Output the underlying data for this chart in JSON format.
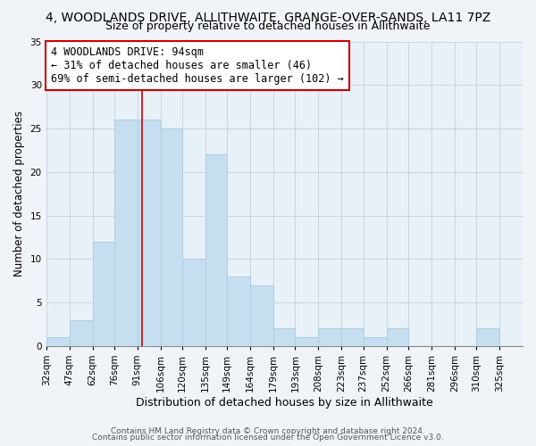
{
  "title": "4, WOODLANDS DRIVE, ALLITHWAITE, GRANGE-OVER-SANDS, LA11 7PZ",
  "subtitle": "Size of property relative to detached houses in Allithwaite",
  "xlabel": "Distribution of detached houses by size in Allithwaite",
  "ylabel": "Number of detached properties",
  "bin_edges": [
    32,
    47,
    62,
    76,
    91,
    106,
    120,
    135,
    149,
    164,
    179,
    193,
    208,
    223,
    237,
    252,
    266,
    281,
    296,
    310,
    325
  ],
  "bar_heights": [
    1,
    3,
    12,
    26,
    26,
    25,
    10,
    22,
    8,
    7,
    2,
    1,
    2,
    2,
    1,
    2,
    0,
    0,
    0,
    2
  ],
  "bar_color": "#c6dff0",
  "bar_edge_color": "#b0cce0",
  "property_size": 94,
  "red_line_color": "#cc0000",
  "annotation_line1": "4 WOODLANDS DRIVE: 94sqm",
  "annotation_line2": "← 31% of detached houses are smaller (46)",
  "annotation_line3": "69% of semi-detached houses are larger (102) →",
  "annotation_box_color": "#ffffff",
  "annotation_box_edge_color": "#cc0000",
  "ylim": [
    0,
    35
  ],
  "yticks": [
    0,
    5,
    10,
    15,
    20,
    25,
    30,
    35
  ],
  "footer_line1": "Contains HM Land Registry data © Crown copyright and database right 2024.",
  "footer_line2": "Contains public sector information licensed under the Open Government Licence v3.0.",
  "background_color": "#f0f4f8",
  "plot_bg_color": "#e8f0f8",
  "title_fontsize": 10,
  "subtitle_fontsize": 9,
  "xlabel_fontsize": 9,
  "ylabel_fontsize": 8.5,
  "tick_fontsize": 7.5,
  "annotation_fontsize": 8.5,
  "footer_fontsize": 6.5
}
